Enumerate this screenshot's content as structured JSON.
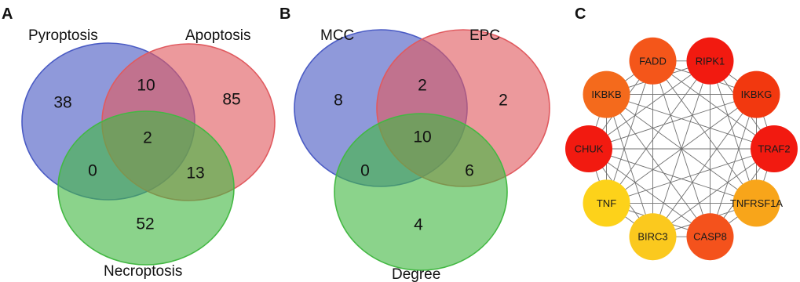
{
  "panels": {
    "a": {
      "letter": "A",
      "sets": [
        {
          "label": "Pyroptosis",
          "color": "#4a5bc4"
        },
        {
          "label": "Apoptosis",
          "color": "#e05a5f"
        },
        {
          "label": "Necroptosis",
          "color": "#43b843"
        }
      ],
      "regions": {
        "only_1": "38",
        "only_2": "85",
        "only_3": "52",
        "r12": "10",
        "r13": "0",
        "r23": "13",
        "r123": "2"
      }
    },
    "b": {
      "letter": "B",
      "sets": [
        {
          "label": "MCC",
          "color": "#4a5bc4"
        },
        {
          "label": "EPC",
          "color": "#e05a5f"
        },
        {
          "label": "Degree",
          "color": "#43b843"
        }
      ],
      "regions": {
        "only_1": "8",
        "only_2": "2",
        "only_3": "4",
        "r12": "2",
        "r13": "0",
        "r23": "6",
        "r123": "10"
      }
    },
    "c": {
      "letter": "C",
      "nodes": [
        {
          "label": "RIPK1",
          "color": "#f21a10"
        },
        {
          "label": "IKBKG",
          "color": "#f2380f"
        },
        {
          "label": "TRAF2",
          "color": "#f21a10"
        },
        {
          "label": "TNFRSF1A",
          "color": "#f8a51a"
        },
        {
          "label": "CASP8",
          "color": "#f4521c"
        },
        {
          "label": "BIRC3",
          "color": "#fbc91e"
        },
        {
          "label": "TNF",
          "color": "#fdd21a"
        },
        {
          "label": "CHUK",
          "color": "#f21a10"
        },
        {
          "label": "IKBKB",
          "color": "#f46a1c"
        },
        {
          "label": "FADD",
          "color": "#f4561a"
        }
      ]
    }
  }
}
